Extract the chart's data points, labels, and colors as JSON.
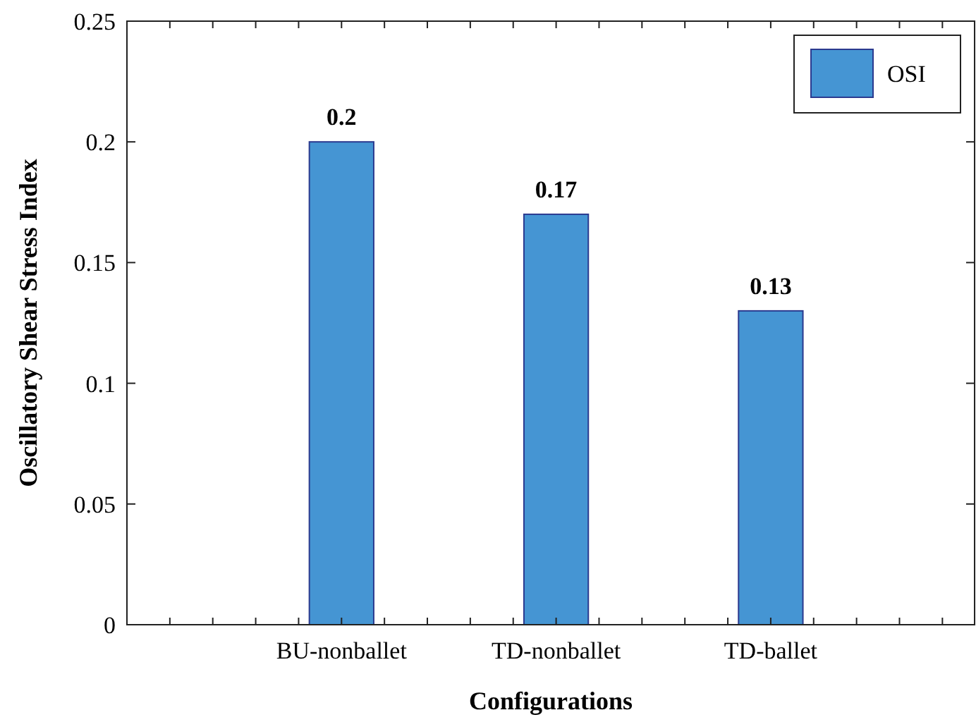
{
  "chart_data": {
    "type": "bar",
    "xlabel": "Configurations",
    "ylabel": "Oscillatory Shear Stress Index",
    "categories": [
      "BU-nonballet",
      "TD-nonballet",
      "TD-ballet"
    ],
    "series": [
      {
        "name": "OSI",
        "color": "#4595d3",
        "values": [
          0.2,
          0.17,
          0.13
        ]
      }
    ],
    "ylim": [
      0,
      0.25
    ],
    "yticks": [
      0,
      0.05,
      0.1,
      0.15,
      0.2,
      0.25
    ],
    "data_labels": true,
    "legend": "top right",
    "grid": false
  }
}
